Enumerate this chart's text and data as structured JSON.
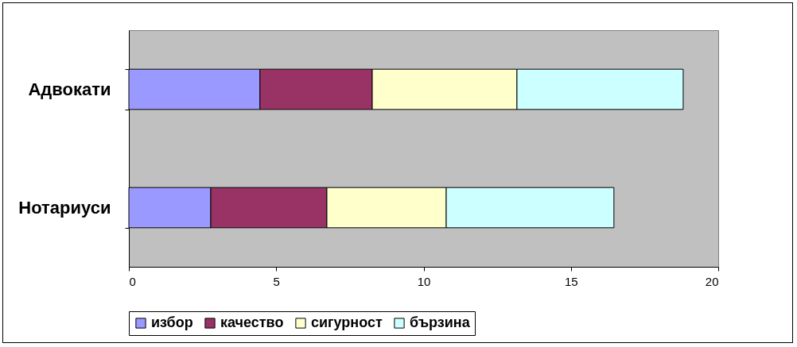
{
  "chart_data": {
    "type": "bar",
    "orientation": "horizontal",
    "stacked": true,
    "categories": [
      "Адвокати",
      "Нотариуси"
    ],
    "series": [
      {
        "name": "избор",
        "color": "#9999ff",
        "values": [
          4.45,
          2.78
        ]
      },
      {
        "name": "качество",
        "color": "#993366",
        "values": [
          3.81,
          3.94
        ]
      },
      {
        "name": "сигурност",
        "color": "#ffffcc",
        "values": [
          4.91,
          4.05
        ]
      },
      {
        "name": "бързина",
        "color": "#ccffff",
        "values": [
          5.64,
          5.69
        ]
      }
    ],
    "xlim": [
      0,
      20
    ],
    "xticks": [
      0,
      5,
      10,
      15,
      20
    ],
    "legend": "bottom"
  }
}
